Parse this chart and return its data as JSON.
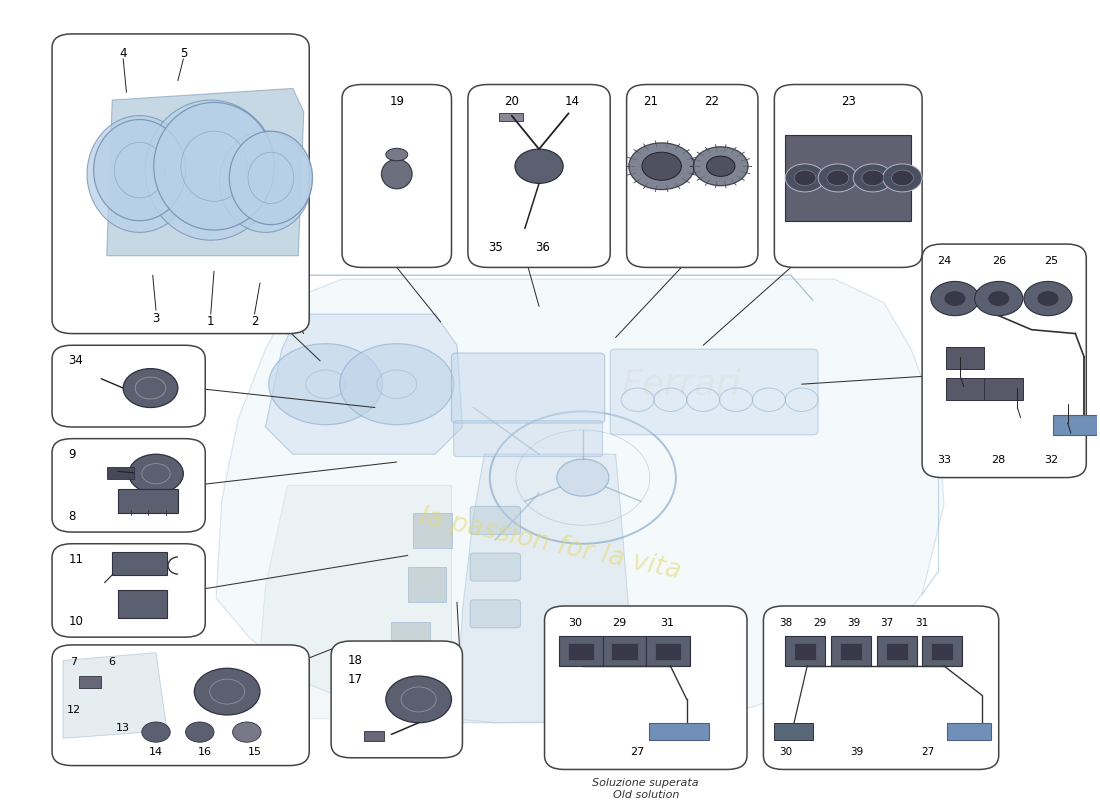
{
  "bg_color": "#ffffff",
  "box_edge": "#444444",
  "line_color": "#333333",
  "text_color": "#000000",
  "component_fill": "#5a6070",
  "component_edge": "#303040",
  "blue_fill": "#b8d0e8",
  "blue_edge": "#7090b0",
  "watermark_text": "la passion for la vita",
  "watermark_color": "#e8d870",
  "watermark_alpha": 0.55,
  "solution_text_1": "Soluzione superata",
  "solution_text_2": "Old solution",
  "fig_w": 11.0,
  "fig_h": 8.0,
  "dpi": 100,
  "boxes": {
    "cluster": [
      0.045,
      0.575,
      0.235,
      0.385
    ],
    "p19": [
      0.31,
      0.66,
      0.1,
      0.235
    ],
    "p20_14": [
      0.425,
      0.66,
      0.13,
      0.235
    ],
    "p21_22": [
      0.57,
      0.66,
      0.12,
      0.235
    ],
    "p23": [
      0.705,
      0.66,
      0.135,
      0.235
    ],
    "p34": [
      0.045,
      0.455,
      0.14,
      0.105
    ],
    "p9_8": [
      0.045,
      0.32,
      0.14,
      0.12
    ],
    "p11_10": [
      0.045,
      0.185,
      0.14,
      0.12
    ],
    "p7": [
      0.045,
      0.02,
      0.235,
      0.155
    ],
    "p18_17": [
      0.3,
      0.03,
      0.12,
      0.15
    ],
    "p24": [
      0.84,
      0.39,
      0.15,
      0.3
    ],
    "p30_old": [
      0.495,
      0.015,
      0.185,
      0.21
    ],
    "p38_new": [
      0.695,
      0.015,
      0.215,
      0.21
    ]
  },
  "conn_lines": [
    [
      0.185,
      0.76,
      0.275,
      0.575
    ],
    [
      0.185,
      0.68,
      0.29,
      0.54
    ],
    [
      0.36,
      0.66,
      0.4,
      0.59
    ],
    [
      0.48,
      0.66,
      0.49,
      0.61
    ],
    [
      0.62,
      0.66,
      0.56,
      0.57
    ],
    [
      0.72,
      0.66,
      0.64,
      0.56
    ],
    [
      0.175,
      0.505,
      0.34,
      0.48
    ],
    [
      0.175,
      0.38,
      0.36,
      0.41
    ],
    [
      0.175,
      0.245,
      0.37,
      0.29
    ],
    [
      0.175,
      0.1,
      0.31,
      0.175
    ],
    [
      0.42,
      0.105,
      0.415,
      0.23
    ],
    [
      0.84,
      0.52,
      0.73,
      0.51
    ]
  ]
}
